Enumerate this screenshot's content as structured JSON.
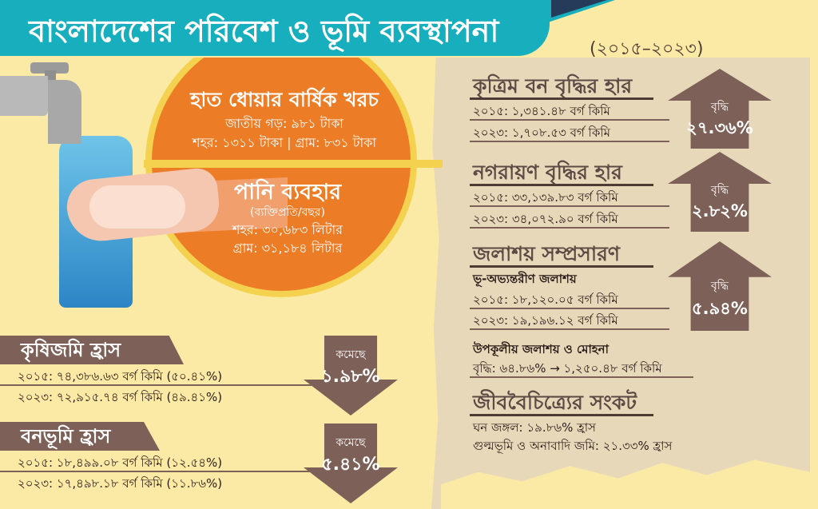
{
  "header": {
    "title": "বাংলাদেশের পরিবেশ ও ভূমি ব্যবস্থাপনা",
    "years": "(২০১৫–২০২৩)"
  },
  "handwash": {
    "title": "হাত ধোয়ার বার্ষিক খরচ",
    "national": "জাতীয় গড়: ৯৮১ টাকা",
    "city_village": "শহর: ১৩১১ টাকা | গ্রাম: ৮৩১ টাকা"
  },
  "water_use": {
    "title": "পানি ব্যবহার",
    "sub": "(ব্যক্তিপ্রতি/বছর)",
    "city": "শহর: ৩০,৬৮৩ লিটার",
    "village": "গ্রাম: ৩১,১৮৪ লিটার"
  },
  "agri": {
    "title": "কৃষিজমি হ্রাস",
    "row2015": "২০১৫: ৭৪,৩৮৬.৬৩ বর্গ কিমি (৫০.৪১%)",
    "row2023": "২০২৩: ৭২,৯১৫.৭৪ বর্গ কিমি (৪৯.৪১%)",
    "arrow_label": "কমেছে",
    "arrow_value": "১.৯৮%"
  },
  "forest_loss": {
    "title": "বনভূমি হ্রাস",
    "row2015": "২০১৫: ১৮,৪৯৯.০৮ বর্গ কিমি (১২.৫৪%)",
    "row2023": "২০২৩: ১৭,৪৯৮.১৮ বর্গ কিমি (১১.৮৬%)",
    "arrow_label": "কমেছে",
    "arrow_value": "৫.৪১%"
  },
  "artificial_forest": {
    "title": "কৃত্রিম বন বৃদ্ধির হার",
    "row2015": "২০১৫: ১,৩৪১.৪৮ বর্গ কিমি",
    "row2023": "২০২৩: ১,৭০৮.৫৩ বর্গ কিমি",
    "arrow_label": "বৃদ্ধি",
    "arrow_value": "২৭.৩৬%"
  },
  "urban": {
    "title": "নগরায়ণ বৃদ্ধির হার",
    "row2015": "২০১৫: ৩৩,১৩৯.৮৩ বর্গ কিমি",
    "row2023": "২০২৩: ৩৪,০৭২.৯০ বর্গ কিমি",
    "arrow_label": "বৃদ্ধি",
    "arrow_value": "২.৮২%"
  },
  "waterbody": {
    "title": "জলাশয় সম্প্রসারণ",
    "inland": "ভূ-অভ্যন্তরীণ জলাশয়",
    "row2015": "২০১৫: ১৮,১২০.০৫ বর্গ কিমি",
    "row2023": "২০২৩: ১৯,১৯৬.১২ বর্গ কিমি",
    "arrow_label": "বৃদ্ধি",
    "arrow_value": "৫.৯৪%",
    "coastal": "উপকূলীয় জলাশয় ও মোহনা",
    "coastal_growth": "বৃদ্ধি: ৬৪.৮৬% → ১,২৫০.৪৮ বর্গ কিমি"
  },
  "biodiversity": {
    "title": "জীববৈচিত্র্যের সংকট",
    "dense_forest": "ঘন জঙ্গল: ১৯.৮৬% হ্রাস",
    "shrub": "গুল্মভূমি ও অনাবাদি জমি: ২১.৩৩% হ্রাস"
  },
  "colors": {
    "teal": "#17aebd",
    "brown": "#7d6158",
    "orange": "#ec7d26",
    "sun": "#f4d250",
    "cream": "#fbe9a6",
    "paper": "#e8d8ba"
  },
  "icons": [
    "water-tap-icon",
    "washing-hands-icon"
  ]
}
